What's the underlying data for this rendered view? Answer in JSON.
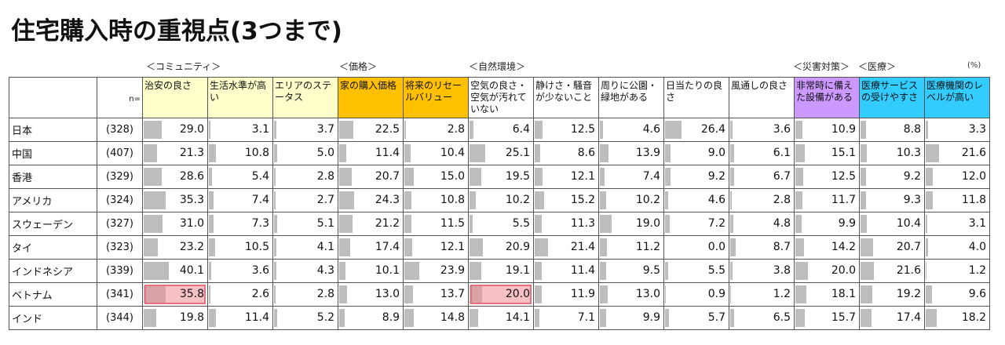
{
  "title": "住宅購入時の重視点(3つまで)",
  "group_labels": {
    "community": "＜コミュニティ＞",
    "price": "＜価格＞",
    "environment": "＜自然環境＞",
    "disaster": "＜災害対策＞",
    "medical": "＜医療＞"
  },
  "unit": "(%)",
  "n_label": "n=",
  "columns": [
    {
      "label": "治安の良さ",
      "color": "#ffffcc"
    },
    {
      "label": "生活水準が高い",
      "color": "#ffffcc"
    },
    {
      "label": "エリアのステータス",
      "color": "#ffffcc"
    },
    {
      "label": "家の購入価格",
      "color": "#ffc000"
    },
    {
      "label": "将来のリセールバリュー",
      "color": "#ffc000"
    },
    {
      "label": "空気の良さ・空気が汚れていない",
      "color": "#ffffff"
    },
    {
      "label": "静けさ・騒音が少ないこと",
      "color": "#ffffff"
    },
    {
      "label": "周りに公園・緑地がある",
      "color": "#ffffff"
    },
    {
      "label": "日当たりの良さ",
      "color": "#ffffff"
    },
    {
      "label": "風通しの良さ",
      "color": "#ffffff"
    },
    {
      "label": "非常時に備えた設備がある",
      "color": "#cc99ff"
    },
    {
      "label": "医療サービスの受けやすさ",
      "color": "#33ccff"
    },
    {
      "label": "医療機関のレベルが高い",
      "color": "#33ccff"
    }
  ],
  "rows": [
    {
      "country": "日本",
      "n": "(328)",
      "values": [
        "29.0",
        "3.1",
        "3.7",
        "22.5",
        "2.8",
        "6.4",
        "12.5",
        "4.6",
        "26.4",
        "3.6",
        "10.9",
        "8.8",
        "3.3"
      ]
    },
    {
      "country": "中国",
      "n": "(407)",
      "values": [
        "21.3",
        "10.8",
        "5.0",
        "11.4",
        "10.4",
        "25.1",
        "8.6",
        "13.9",
        "9.0",
        "6.1",
        "15.1",
        "10.3",
        "21.6"
      ]
    },
    {
      "country": "香港",
      "n": "(329)",
      "values": [
        "28.6",
        "5.4",
        "2.8",
        "20.7",
        "15.0",
        "19.5",
        "12.1",
        "7.4",
        "9.2",
        "6.7",
        "12.5",
        "9.2",
        "12.0"
      ]
    },
    {
      "country": "アメリカ",
      "n": "(324)",
      "values": [
        "35.3",
        "7.4",
        "2.7",
        "24.3",
        "10.8",
        "10.2",
        "15.2",
        "10.2",
        "4.6",
        "2.8",
        "11.7",
        "9.3",
        "11.8"
      ]
    },
    {
      "country": "スウェーデン",
      "n": "(327)",
      "values": [
        "31.0",
        "7.3",
        "5.1",
        "21.2",
        "11.5",
        "5.5",
        "11.3",
        "19.0",
        "7.2",
        "4.8",
        "9.9",
        "10.4",
        "3.1"
      ]
    },
    {
      "country": "タイ",
      "n": "(323)",
      "values": [
        "23.2",
        "10.5",
        "4.1",
        "17.4",
        "12.1",
        "20.9",
        "21.4",
        "11.2",
        "0.0",
        "8.7",
        "14.2",
        "20.7",
        "4.0"
      ]
    },
    {
      "country": "インドネシア",
      "n": "(339)",
      "values": [
        "40.1",
        "3.6",
        "4.3",
        "10.1",
        "23.9",
        "19.1",
        "11.4",
        "9.5",
        "5.5",
        "3.8",
        "20.0",
        "21.6",
        "1.2"
      ]
    },
    {
      "country": "ベトナム",
      "n": "(341)",
      "values": [
        "35.8",
        "2.6",
        "2.8",
        "13.0",
        "13.7",
        "20.0",
        "11.9",
        "13.0",
        "0.9",
        "1.2",
        "18.1",
        "19.2",
        "9.6"
      ]
    },
    {
      "country": "インド",
      "n": "(344)",
      "values": [
        "19.8",
        "11.4",
        "5.2",
        "8.9",
        "14.8",
        "14.1",
        "7.1",
        "9.9",
        "5.7",
        "6.5",
        "15.7",
        "17.4",
        "18.2"
      ]
    }
  ],
  "highlighted": [
    {
      "row": 7,
      "col": 0
    },
    {
      "row": 7,
      "col": 5
    }
  ],
  "highlight_color": "#f08c96"
}
